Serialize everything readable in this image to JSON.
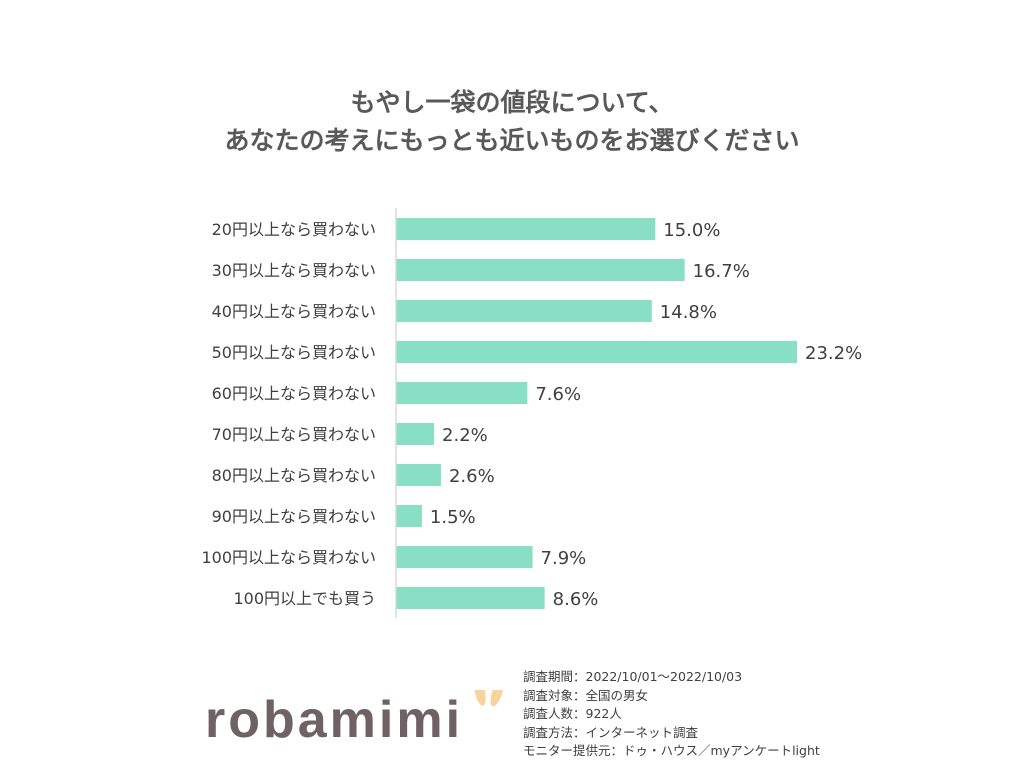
{
  "chart_data": {
    "type": "bar",
    "orientation": "horizontal",
    "title": [
      "もやし一袋の値段について、",
      "あなたの考えにもっとも近いものをお選びください"
    ],
    "categories": [
      "20円以上なら買わない",
      "30円以上なら買わない",
      "40円以上なら買わない",
      "50円以上なら買わない",
      "60円以上なら買わない",
      "70円以上なら買わない",
      "80円以上なら買わない",
      "90円以上なら買わない",
      "100円以上なら買わない",
      "100円以上でも買う"
    ],
    "values": [
      15.0,
      16.7,
      14.8,
      23.2,
      7.6,
      2.2,
      2.6,
      1.5,
      7.9,
      8.6
    ],
    "value_suffix": "%",
    "xlim": [
      0,
      25
    ],
    "bar_color": "#88dfc3",
    "grid": false,
    "legend": "none"
  },
  "footer": {
    "logo_text": "robamimi",
    "logo_accent_color": "#f9d39c",
    "meta": [
      "調査期間：2022/10/01～2022/10/03",
      "調査対象：全国の男女",
      "調査人数：922人",
      "調査方法：インターネット調査",
      "モニター提供元：ドゥ・ハウス／myアンケートlight"
    ]
  }
}
